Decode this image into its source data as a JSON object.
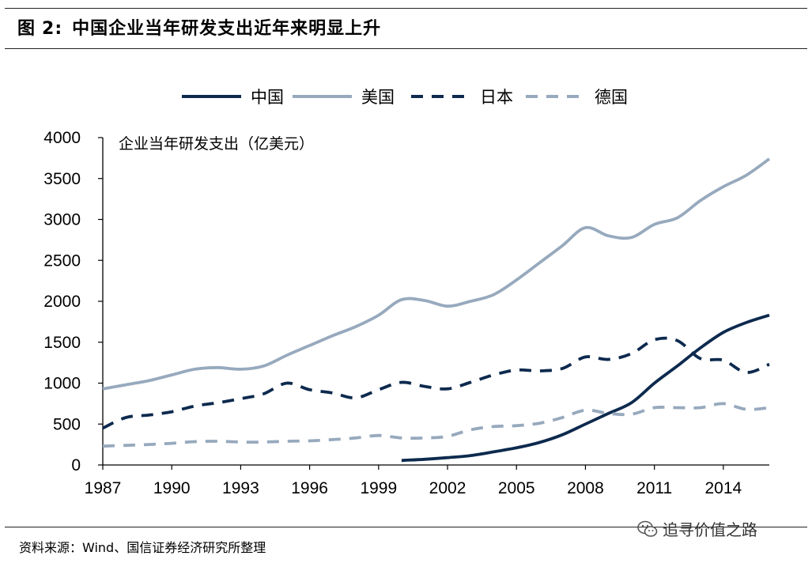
{
  "figure": {
    "label": "图",
    "number": "2:",
    "title": "中国企业当年研发支出近年来明显上升"
  },
  "source_text": "资料来源：Wind、国信证券经济研究所整理",
  "watermark": {
    "text": "追寻价值之路",
    "icon": "wechat-icon"
  },
  "chart_data": {
    "type": "line",
    "ylabel": "企业当年研发支出（亿美元）",
    "ylim": [
      0,
      4000
    ],
    "yticks": [
      0,
      500,
      1000,
      1500,
      2000,
      2500,
      3000,
      3500,
      4000
    ],
    "xlim": [
      1987,
      2016
    ],
    "xticks": [
      1987,
      1990,
      1993,
      1996,
      1999,
      2002,
      2005,
      2008,
      2011,
      2014
    ],
    "grid": false,
    "legend_position": "top",
    "series": [
      {
        "name": "中国",
        "color": "#0d2a4e",
        "dash": "solid",
        "x": [
          2000,
          2001,
          2002,
          2003,
          2004,
          2005,
          2006,
          2007,
          2008,
          2009,
          2010,
          2011,
          2012,
          2013,
          2014,
          2015,
          2016
        ],
        "values": [
          55,
          70,
          90,
          115,
          160,
          210,
          275,
          370,
          500,
          630,
          760,
          1000,
          1210,
          1430,
          1620,
          1740,
          1830
        ]
      },
      {
        "name": "美国",
        "color": "#97a9bd",
        "dash": "solid",
        "x": [
          1987,
          1988,
          1989,
          1990,
          1991,
          1992,
          1993,
          1994,
          1995,
          1996,
          1997,
          1998,
          1999,
          2000,
          2001,
          2002,
          2003,
          2004,
          2005,
          2006,
          2007,
          2008,
          2009,
          2010,
          2011,
          2012,
          2013,
          2014,
          2015,
          2016
        ],
        "values": [
          930,
          980,
          1030,
          1100,
          1170,
          1190,
          1170,
          1210,
          1340,
          1460,
          1580,
          1690,
          1830,
          2020,
          2010,
          1940,
          2000,
          2080,
          2260,
          2470,
          2680,
          2900,
          2800,
          2780,
          2940,
          3020,
          3230,
          3400,
          3540,
          3740
        ]
      },
      {
        "name": "日本",
        "color": "#0d2a4e",
        "dash": "dashed",
        "x": [
          1987,
          1988,
          1989,
          1990,
          1991,
          1992,
          1993,
          1994,
          1995,
          1996,
          1997,
          1998,
          1999,
          2000,
          2001,
          2002,
          2003,
          2004,
          2005,
          2006,
          2007,
          2008,
          2009,
          2010,
          2011,
          2012,
          2013,
          2014,
          2015,
          2016
        ],
        "values": [
          450,
          580,
          610,
          650,
          720,
          760,
          810,
          870,
          1000,
          920,
          880,
          820,
          920,
          1010,
          960,
          930,
          1010,
          1100,
          1160,
          1150,
          1180,
          1320,
          1290,
          1360,
          1530,
          1520,
          1300,
          1280,
          1130,
          1230
        ]
      },
      {
        "name": "德国",
        "color": "#97a9bd",
        "dash": "dashed",
        "x": [
          1987,
          1988,
          1989,
          1990,
          1991,
          1992,
          1993,
          1994,
          1995,
          1996,
          1997,
          1998,
          1999,
          2000,
          2001,
          2002,
          2003,
          2004,
          2005,
          2006,
          2007,
          2008,
          2009,
          2010,
          2011,
          2012,
          2013,
          2014,
          2015,
          2016
        ],
        "values": [
          230,
          240,
          250,
          265,
          285,
          290,
          280,
          280,
          290,
          295,
          310,
          330,
          360,
          330,
          330,
          350,
          430,
          470,
          480,
          510,
          580,
          670,
          630,
          620,
          700,
          700,
          700,
          750,
          680,
          700
        ]
      }
    ]
  }
}
